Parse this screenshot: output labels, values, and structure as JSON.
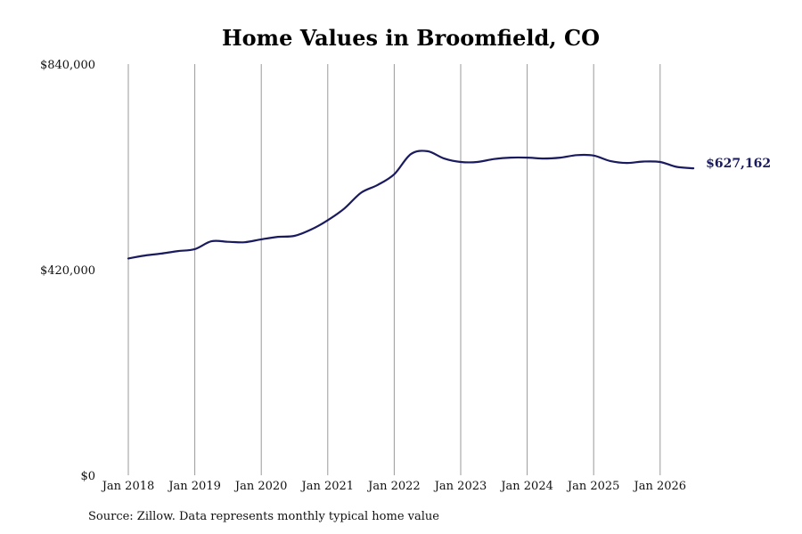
{
  "chart_data": {
    "type": "line",
    "title": "Home Values in Broomfield, CO",
    "xlabel": "",
    "ylabel": "",
    "ylim": [
      0,
      840000
    ],
    "y_ticks": [
      {
        "value": 0,
        "label": "$0"
      },
      {
        "value": 420000,
        "label": "$420,000"
      },
      {
        "value": 840000,
        "label": "$840,000"
      }
    ],
    "x_ticks": [
      "Jan 2018",
      "Jan 2019",
      "Jan 2020",
      "Jan 2021",
      "Jan 2022",
      "Jan 2023",
      "Jan 2024",
      "Jan 2025",
      "Jan 2026"
    ],
    "grid": "vertical",
    "line_color": "#1a1a5e",
    "end_label": "$627,162",
    "series": [
      {
        "x": [
          "2018-01",
          "2018-04",
          "2018-07",
          "2018-10",
          "2019-01",
          "2019-04",
          "2019-07",
          "2019-10",
          "2020-01",
          "2020-04",
          "2020-07",
          "2020-10",
          "2021-01",
          "2021-04",
          "2021-07",
          "2021-10",
          "2022-01",
          "2022-04",
          "2022-07",
          "2022-10",
          "2023-01",
          "2023-04",
          "2023-07",
          "2023-10",
          "2024-01",
          "2024-04",
          "2024-07",
          "2024-10",
          "2025-01",
          "2025-04",
          "2025-07",
          "2025-10",
          "2026-01",
          "2026-04",
          "2026-07"
        ],
        "values": [
          443000,
          449000,
          453000,
          458000,
          462000,
          478000,
          477000,
          476000,
          482000,
          487000,
          489000,
          502000,
          521000,
          545000,
          577000,
          593000,
          615000,
          656000,
          662000,
          647000,
          640000,
          640000,
          646000,
          649000,
          649000,
          647000,
          649000,
          654000,
          653000,
          642000,
          638000,
          641000,
          640000,
          630000,
          627162
        ]
      }
    ]
  },
  "source_note": "Source: Zillow. Data represents monthly typical home value"
}
